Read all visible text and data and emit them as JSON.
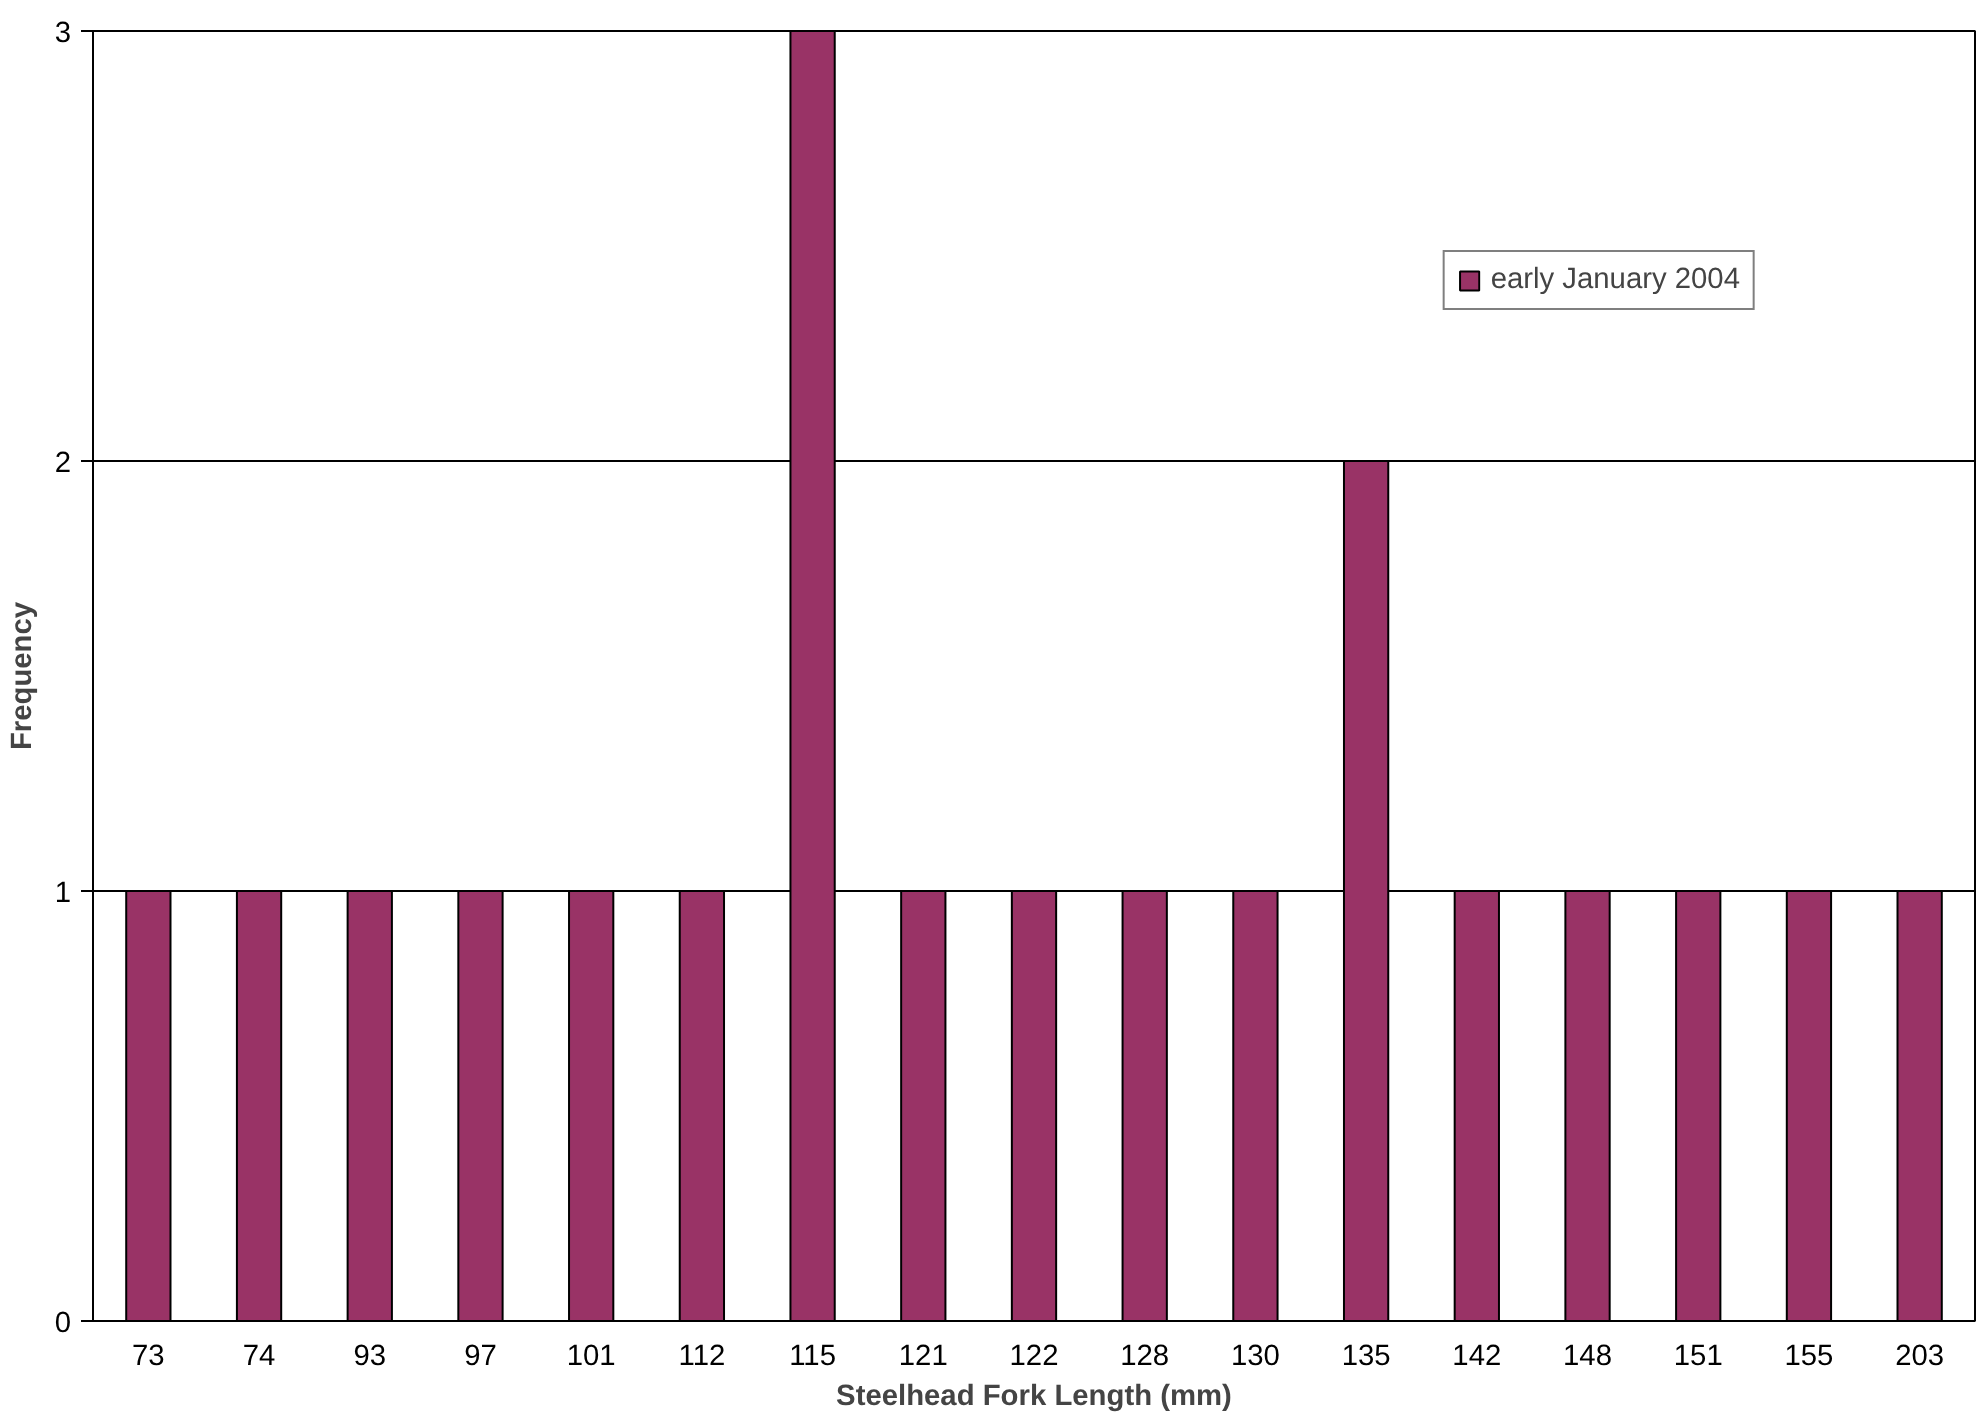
{
  "chart_data": {
    "type": "bar",
    "xlabel": "Steelhead Fork Length (mm)",
    "ylabel": "Frequency",
    "categories": [
      "73",
      "74",
      "93",
      "97",
      "101",
      "112",
      "115",
      "121",
      "122",
      "128",
      "130",
      "135",
      "142",
      "148",
      "151",
      "155",
      "203"
    ],
    "series": [
      {
        "name": "early January 2004",
        "color": "#993366",
        "values": [
          1,
          1,
          1,
          1,
          1,
          1,
          3,
          1,
          1,
          1,
          1,
          2,
          1,
          1,
          1,
          1,
          1
        ]
      }
    ],
    "ylim": [
      0,
      3
    ],
    "yticks": [
      0,
      1,
      2,
      3
    ],
    "grid": "y",
    "legend": "top right"
  }
}
